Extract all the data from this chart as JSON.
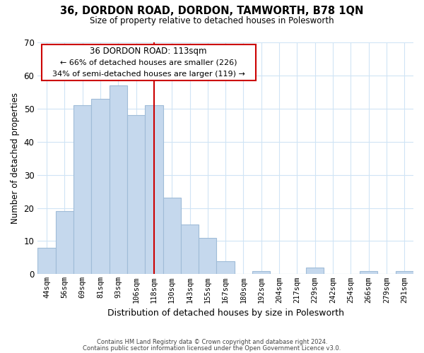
{
  "title_line1": "36, DORDON ROAD, DORDON, TAMWORTH, B78 1QN",
  "title_line2": "Size of property relative to detached houses in Polesworth",
  "xlabel": "Distribution of detached houses by size in Polesworth",
  "ylabel": "Number of detached properties",
  "bar_labels": [
    "44sqm",
    "56sqm",
    "69sqm",
    "81sqm",
    "93sqm",
    "106sqm",
    "118sqm",
    "130sqm",
    "143sqm",
    "155sqm",
    "167sqm",
    "180sqm",
    "192sqm",
    "204sqm",
    "217sqm",
    "229sqm",
    "242sqm",
    "254sqm",
    "266sqm",
    "279sqm",
    "291sqm"
  ],
  "bar_values": [
    8,
    19,
    51,
    53,
    57,
    48,
    51,
    23,
    15,
    11,
    4,
    0,
    1,
    0,
    0,
    2,
    0,
    0,
    1,
    0,
    1
  ],
  "bar_color": "#c5d8ed",
  "bar_edge_color": "#a0bcd8",
  "vline_x": 6.0,
  "vline_color": "#cc0000",
  "ylim": [
    0,
    70
  ],
  "yticks": [
    0,
    10,
    20,
    30,
    40,
    50,
    60,
    70
  ],
  "annotation_title": "36 DORDON ROAD: 113sqm",
  "annotation_line2": "← 66% of detached houses are smaller (226)",
  "annotation_line3": "34% of semi-detached houses are larger (119) →",
  "annotation_box_edge": "#cc0000",
  "footer_line1": "Contains HM Land Registry data © Crown copyright and database right 2024.",
  "footer_line2": "Contains public sector information licensed under the Open Government Licence v3.0.",
  "background_color": "#ffffff",
  "grid_color": "#d0e4f5"
}
